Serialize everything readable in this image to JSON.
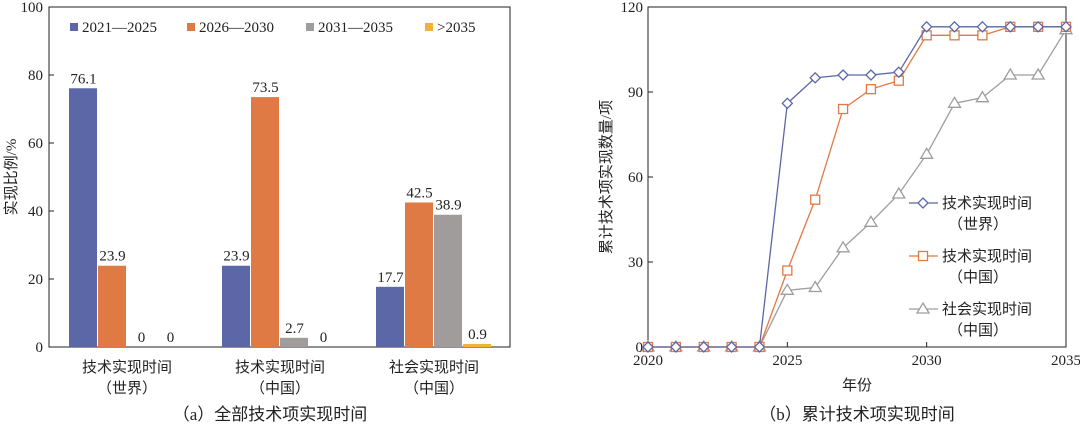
{
  "chart_data": [
    {
      "type": "bar",
      "title": "（a）全部技术项实现时间",
      "xlabel": "",
      "ylabel": "实现比例/%",
      "ylim": [
        0,
        100
      ],
      "yticks": [
        0,
        20,
        40,
        60,
        80,
        100
      ],
      "grid": false,
      "legend_position": "top",
      "categories": [
        [
          "技术实现时间",
          "（世界）"
        ],
        [
          "技术实现时间",
          "（中国）"
        ],
        [
          "社会实现时间",
          "（中国）"
        ]
      ],
      "series": [
        {
          "name": "2021—2025",
          "color": "#5b67a6",
          "values": [
            76.1,
            23.9,
            17.7
          ]
        },
        {
          "name": "2026—2030",
          "color": "#e07a45",
          "values": [
            23.9,
            73.5,
            42.5
          ]
        },
        {
          "name": "2031—2035",
          "color": "#a09c9c",
          "values": [
            0,
            2.7,
            38.9
          ]
        },
        {
          "name": ">2035",
          "color": "#f2b233",
          "values": [
            0,
            0,
            0.9
          ]
        }
      ]
    },
    {
      "type": "line",
      "title": "（b）累计技术项实现时间",
      "xlabel": "年份",
      "ylabel": "累计技术项实现数量/项",
      "xlim": [
        2020,
        2035
      ],
      "ylim": [
        0,
        120
      ],
      "xticks": [
        2020,
        2025,
        2030,
        2035
      ],
      "yticks": [
        0,
        30,
        60,
        90,
        120
      ],
      "grid": false,
      "legend_position": "right",
      "x": [
        2020,
        2021,
        2022,
        2023,
        2024,
        2025,
        2026,
        2027,
        2028,
        2029,
        2030,
        2031,
        2032,
        2033,
        2034,
        2035
      ],
      "series": [
        {
          "name": [
            "技术实现时间",
            "（世界）"
          ],
          "color": "#5b67a6",
          "marker": "diamond",
          "values": [
            0,
            0,
            0,
            0,
            0,
            86,
            95,
            96,
            96,
            97,
            113,
            113,
            113,
            113,
            113,
            113
          ]
        },
        {
          "name": [
            "技术实现时间",
            "（中国）"
          ],
          "color": "#e07a45",
          "marker": "square",
          "values": [
            0,
            0,
            0,
            0,
            0,
            27,
            52,
            84,
            91,
            94,
            110,
            110,
            110,
            113,
            113,
            113
          ]
        },
        {
          "name": [
            "社会实现时间",
            "（中国）"
          ],
          "color": "#a09c9c",
          "marker": "triangle",
          "values": [
            0,
            0,
            0,
            0,
            0,
            20,
            21,
            35,
            44,
            54,
            68,
            86,
            88,
            96,
            96,
            112
          ]
        }
      ]
    }
  ]
}
